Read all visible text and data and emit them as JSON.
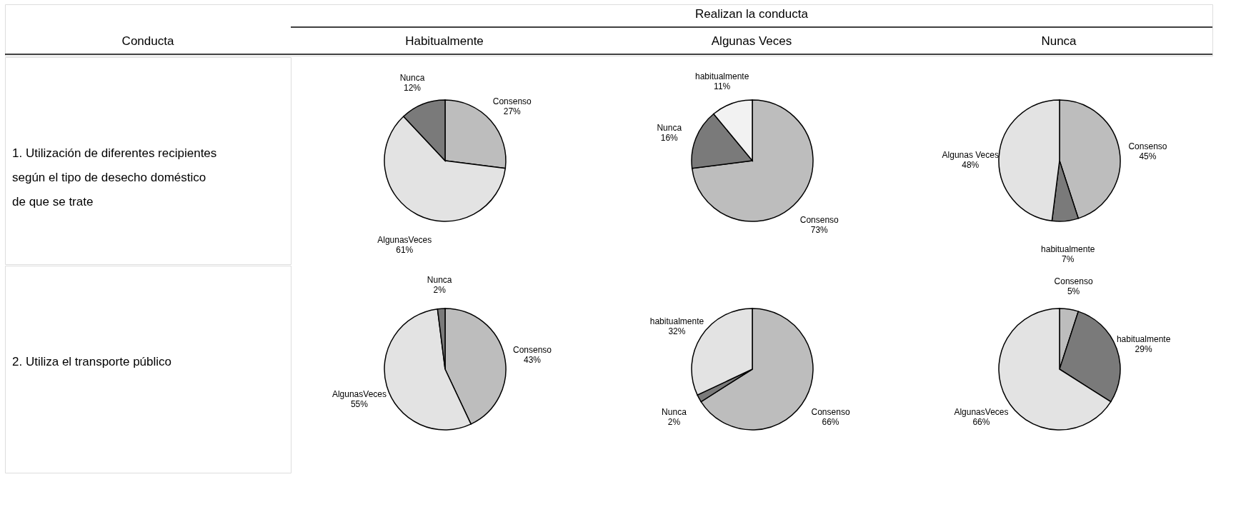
{
  "chart_data": [
    {
      "type": "other",
      "annotations": [
        "Realizan la conducta",
        "Conducta",
        "Habitualmente",
        "Algunas Veces",
        "Nunca",
        "1. Utilización de diferentes recipientes\nsegún el tipo de desecho doméstico\nde que se trate",
        "2. Utiliza el transporte público"
      ]
    },
    {
      "type": "pie",
      "categories": [
        "Consenso",
        "AlgunasVeces",
        "Nunca"
      ],
      "values": [
        27,
        61,
        12
      ],
      "value_labels": [
        "27%",
        "61%",
        "12%"
      ],
      "colors": [
        "#bdbdbd",
        "#e3e3e3",
        "#7a7a7a"
      ]
    },
    {
      "type": "pie",
      "categories": [
        "Consenso",
        "Nunca",
        "habitualmente"
      ],
      "values": [
        73,
        16,
        11
      ],
      "value_labels": [
        "73%",
        "16%",
        "11%"
      ],
      "colors": [
        "#bdbdbd",
        "#7a7a7a",
        "#f2f2f2"
      ]
    },
    {
      "type": "pie",
      "categories": [
        "Consenso",
        "habitualmente",
        "Algunas Veces"
      ],
      "values": [
        45,
        7,
        48
      ],
      "value_labels": [
        "45%",
        "7%",
        "48%"
      ],
      "colors": [
        "#bdbdbd",
        "#7a7a7a",
        "#e3e3e3"
      ]
    },
    {
      "type": "pie",
      "categories": [
        "Consenso",
        "AlgunasVeces",
        "Nunca"
      ],
      "values": [
        43,
        55,
        2
      ],
      "value_labels": [
        "43%",
        "55%",
        "2%"
      ],
      "colors": [
        "#bdbdbd",
        "#e3e3e3",
        "#7a7a7a"
      ]
    },
    {
      "type": "pie",
      "categories": [
        "Consenso",
        "Nunca",
        "habitualmente"
      ],
      "values": [
        66,
        2,
        32
      ],
      "value_labels": [
        "66%",
        "2%",
        "32%"
      ],
      "colors": [
        "#bdbdbd",
        "#7a7a7a",
        "#e3e3e3"
      ]
    },
    {
      "type": "pie",
      "categories": [
        "Consenso",
        "habitualmente",
        "AlgunasVeces"
      ],
      "values": [
        5,
        29,
        66
      ],
      "value_labels": [
        "5%",
        "29%",
        "66%"
      ],
      "colors": [
        "#bdbdbd",
        "#7a7a7a",
        "#e3e3e3"
      ]
    }
  ]
}
